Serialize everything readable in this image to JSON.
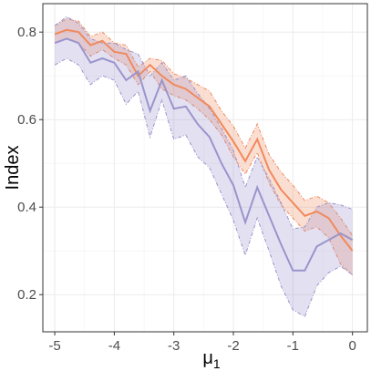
{
  "chart_data": {
    "type": "line",
    "title": "",
    "xlabel": "μ",
    "xlabel_subscript": "1",
    "ylabel": "Index",
    "xlim": [
      -5.2,
      0.25
    ],
    "ylim": [
      0.115,
      0.865
    ],
    "x_ticks": [
      -5,
      -4,
      -3,
      -2,
      -1,
      0
    ],
    "y_ticks": [
      0.2,
      0.4,
      0.6,
      0.8
    ],
    "grid": true,
    "legend": "none",
    "x": [
      -5,
      -4.8,
      -4.6,
      -4.4,
      -4.2,
      -4,
      -3.8,
      -3.6,
      -3.4,
      -3.2,
      -3,
      -2.8,
      -2.6,
      -2.4,
      -2.2,
      -2,
      -1.8,
      -1.6,
      -1.4,
      -1.2,
      -1,
      -0.8,
      -0.6,
      -0.4,
      -0.2,
      0
    ],
    "series": [
      {
        "color": "#f08a5d",
        "mean": [
          0.795,
          0.805,
          0.8,
          0.77,
          0.78,
          0.755,
          0.75,
          0.7,
          0.725,
          0.7,
          0.68,
          0.67,
          0.65,
          0.63,
          0.59,
          0.55,
          0.505,
          0.555,
          0.485,
          0.44,
          0.41,
          0.38,
          0.39,
          0.375,
          0.335,
          0.3
        ],
        "upper": [
          0.815,
          0.83,
          0.825,
          0.79,
          0.8,
          0.775,
          0.77,
          0.72,
          0.74,
          0.735,
          0.705,
          0.695,
          0.68,
          0.665,
          0.62,
          0.585,
          0.535,
          0.59,
          0.52,
          0.48,
          0.45,
          0.415,
          0.425,
          0.41,
          0.375,
          0.335
        ],
        "lower": [
          0.775,
          0.785,
          0.775,
          0.745,
          0.76,
          0.74,
          0.725,
          0.68,
          0.71,
          0.67,
          0.655,
          0.645,
          0.625,
          0.6,
          0.565,
          0.515,
          0.475,
          0.525,
          0.455,
          0.405,
          0.375,
          0.345,
          0.355,
          0.33,
          0.27,
          0.245
        ]
      },
      {
        "color": "#9a94cc",
        "mean": [
          0.775,
          0.785,
          0.775,
          0.73,
          0.74,
          0.73,
          0.69,
          0.71,
          0.62,
          0.69,
          0.625,
          0.63,
          0.59,
          0.56,
          0.5,
          0.45,
          0.365,
          0.445,
          0.38,
          0.315,
          0.255,
          0.255,
          0.31,
          0.325,
          0.34,
          0.325
        ],
        "upper": [
          0.815,
          0.835,
          0.82,
          0.785,
          0.775,
          0.775,
          0.76,
          0.75,
          0.7,
          0.73,
          0.69,
          0.7,
          0.66,
          0.625,
          0.58,
          0.53,
          0.445,
          0.515,
          0.465,
          0.41,
          0.35,
          0.355,
          0.4,
          0.41,
          0.405,
          0.395
        ],
        "lower": [
          0.725,
          0.74,
          0.725,
          0.68,
          0.7,
          0.69,
          0.635,
          0.665,
          0.56,
          0.645,
          0.555,
          0.565,
          0.515,
          0.49,
          0.43,
          0.37,
          0.29,
          0.375,
          0.3,
          0.22,
          0.165,
          0.15,
          0.22,
          0.25,
          0.265,
          0.245
        ]
      }
    ]
  }
}
